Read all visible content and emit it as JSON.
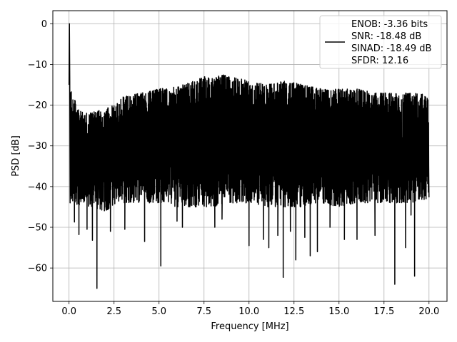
{
  "chart_data": {
    "type": "line",
    "title": "",
    "xlabel": "Frequency [MHz]",
    "ylabel": "PSD [dB]",
    "xlim": [
      -0.9,
      21.0
    ],
    "ylim": [
      -68.2,
      3.2
    ],
    "x_ticks": [
      0.0,
      2.5,
      5.0,
      7.5,
      10.0,
      12.5,
      15.0,
      17.5,
      20.0
    ],
    "x_tick_labels": [
      "0.0",
      "2.5",
      "5.0",
      "7.5",
      "10.0",
      "12.5",
      "15.0",
      "17.5",
      "20.0"
    ],
    "y_ticks": [
      0,
      -10,
      -20,
      -30,
      -40,
      -50,
      -60
    ],
    "y_tick_labels": [
      "0",
      "−10",
      "−20",
      "−30",
      "−40",
      "−50",
      "−60"
    ],
    "grid": true,
    "line_color": "#000000",
    "legend": {
      "placement": "upper-right",
      "entries": [
        "ENOB: -3.36 bits",
        "SNR: -18.48 dB",
        "SINAD: -18.49 dB",
        "SFDR: 12.16"
      ]
    },
    "series": [
      {
        "x_range": [
          0.0,
          20.0
        ],
        "peak": {
          "x": 0.02,
          "y": 0.0
        },
        "upper_envelope": [
          [
            0.1,
            -16
          ],
          [
            0.5,
            -21
          ],
          [
            1.0,
            -22
          ],
          [
            2.0,
            -21
          ],
          [
            2.5,
            -20
          ],
          [
            3.0,
            -18
          ],
          [
            4.0,
            -17
          ],
          [
            5.0,
            -16
          ],
          [
            6.0,
            -15.5
          ],
          [
            7.0,
            -14
          ],
          [
            7.5,
            -13
          ],
          [
            8.0,
            -13.5
          ],
          [
            8.5,
            -12.5
          ],
          [
            9.0,
            -13
          ],
          [
            10.0,
            -14
          ],
          [
            11.0,
            -15
          ],
          [
            12.0,
            -14
          ],
          [
            13.0,
            -15
          ],
          [
            14.0,
            -16
          ],
          [
            15.0,
            -16
          ],
          [
            16.0,
            -16
          ],
          [
            17.0,
            -17
          ],
          [
            18.0,
            -17
          ],
          [
            19.0,
            -17
          ],
          [
            20.0,
            -17.5
          ]
        ],
        "lower_envelope": [
          [
            0.1,
            -44
          ],
          [
            1.0,
            -45
          ],
          [
            2.0,
            -46
          ],
          [
            3.0,
            -44
          ],
          [
            4.0,
            -44
          ],
          [
            5.0,
            -44
          ],
          [
            6.0,
            -45
          ],
          [
            7.0,
            -45
          ],
          [
            8.0,
            -45
          ],
          [
            9.0,
            -44
          ],
          [
            10.0,
            -44
          ],
          [
            11.0,
            -45
          ],
          [
            12.0,
            -45
          ],
          [
            13.0,
            -45
          ],
          [
            14.0,
            -44
          ],
          [
            15.0,
            -45
          ],
          [
            16.0,
            -44
          ],
          [
            17.0,
            -44
          ],
          [
            18.0,
            -44
          ],
          [
            19.0,
            -44
          ],
          [
            20.0,
            -43
          ]
        ],
        "notable_dips": [
          [
            0.3,
            -48.7
          ],
          [
            0.55,
            -51.8
          ],
          [
            1.0,
            -50.5
          ],
          [
            1.3,
            -53.2
          ],
          [
            1.55,
            -65.0
          ],
          [
            2.3,
            -51.0
          ],
          [
            3.1,
            -50.5
          ],
          [
            4.2,
            -53.5
          ],
          [
            5.1,
            -59.5
          ],
          [
            6.0,
            -48.5
          ],
          [
            6.3,
            -50.0
          ],
          [
            8.1,
            -50.0
          ],
          [
            8.5,
            -48.0
          ],
          [
            10.0,
            -54.5
          ],
          [
            10.8,
            -53.0
          ],
          [
            11.1,
            -55.0
          ],
          [
            11.6,
            -52.0
          ],
          [
            11.9,
            -62.3
          ],
          [
            12.3,
            -51.0
          ],
          [
            12.6,
            -58.0
          ],
          [
            13.1,
            -52.5
          ],
          [
            13.4,
            -57.0
          ],
          [
            13.8,
            -56.0
          ],
          [
            14.5,
            -50.0
          ],
          [
            15.3,
            -53.0
          ],
          [
            16.0,
            -53.0
          ],
          [
            17.0,
            -52.0
          ],
          [
            18.1,
            -64.0
          ],
          [
            18.7,
            -55.0
          ],
          [
            19.0,
            -47.0
          ],
          [
            19.2,
            -62.0
          ]
        ]
      }
    ]
  }
}
